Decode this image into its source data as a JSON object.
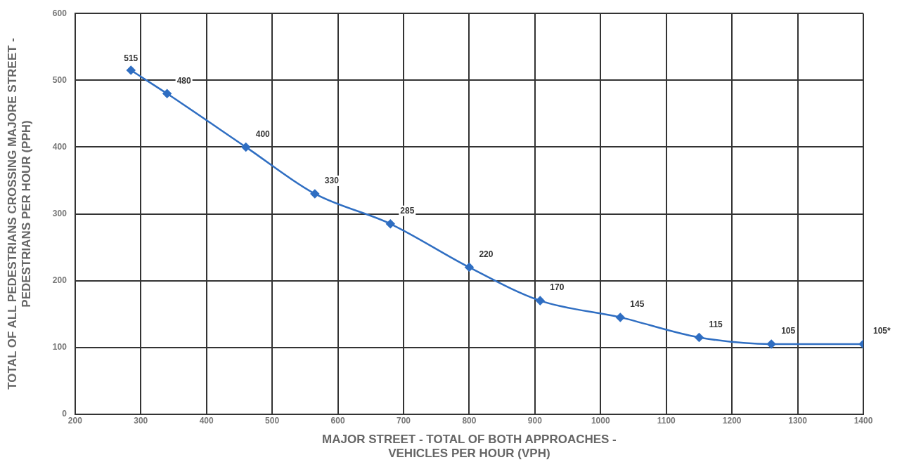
{
  "chart_data": {
    "type": "line",
    "xlabel": "MAJOR STREET - TOTAL OF BOTH APPROACHES -\nVEHICLES PER HOUR (VPH)",
    "ylabel": "TOTAL OF ALL PEDESTRIANS CROSSING MAJORE STREET -\nPEDESTRIANS PER HOUR (PPH)",
    "xlim": [
      200,
      1400
    ],
    "xticks": [
      200,
      300,
      400,
      500,
      600,
      700,
      800,
      900,
      1000,
      1100,
      1200,
      1300,
      1400
    ],
    "ylim": [
      0,
      600
    ],
    "yticks": [
      0,
      100,
      200,
      300,
      400,
      500,
      600
    ],
    "grid": true,
    "legend": false,
    "marker": "diamond",
    "line_style": "solid",
    "series": [
      {
        "color": "#2f6ec2",
        "x": [
          285,
          340,
          460,
          565,
          680,
          800,
          908,
          1030,
          1150,
          1260,
          1400
        ],
        "values": [
          515,
          480,
          400,
          330,
          285,
          220,
          170,
          145,
          115,
          105,
          105
        ],
        "value_labels": [
          "515",
          "480",
          "400",
          "330",
          "285",
          "220",
          "170",
          "145",
          "115",
          "105",
          "105*"
        ]
      }
    ]
  }
}
